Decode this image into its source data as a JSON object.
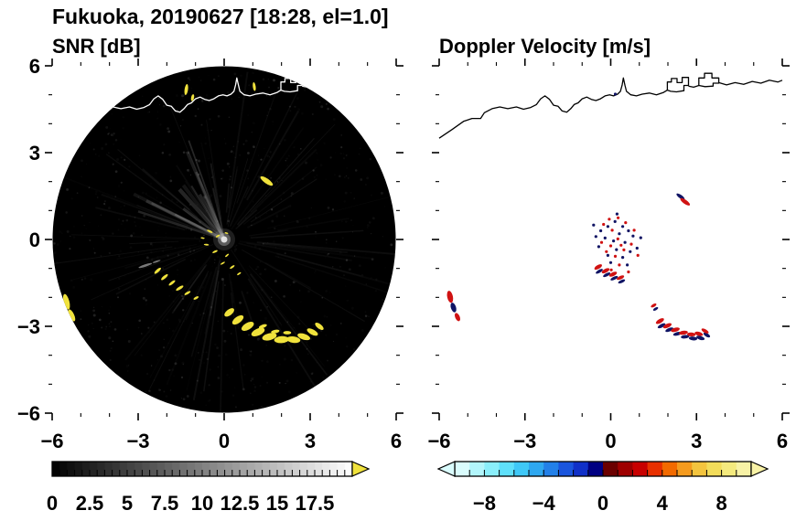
{
  "title": "Fukuoka, 20190627 [18:28, el=1.0]",
  "panels": {
    "snr": {
      "label": "SNR [dB]"
    },
    "doppler": {
      "label": "Doppler Velocity [m/s]"
    }
  },
  "axes": {
    "range": [
      -6,
      6
    ],
    "x_major": [
      -6,
      -3,
      0,
      3,
      6
    ],
    "x_labels": [
      "−6",
      "−3",
      "0",
      "3",
      "6"
    ],
    "y_display": {
      "values": [
        6,
        3,
        0,
        -3,
        -6
      ],
      "labels": [
        "6",
        "3",
        "0",
        "−3",
        "−6"
      ]
    },
    "minor_tick_step": 1
  },
  "colorbars": {
    "snr": {
      "min": 0,
      "max": 20,
      "block_step": 0.5,
      "tick_step": 0.5,
      "label_values": [
        0,
        2.5,
        5,
        7.5,
        10,
        12.5,
        15,
        17.5
      ],
      "labels": [
        "0",
        "2.5",
        "5",
        "7.5",
        "10",
        "12.5",
        "15",
        "17.5"
      ],
      "low_color": "#000000",
      "high_color": "#ffffff",
      "over_arrow_color": "#f0e23c"
    },
    "doppler": {
      "min": -10,
      "max": 10,
      "tick_step": 1,
      "label_values": [
        -8,
        -4,
        0,
        4,
        8
      ],
      "labels": [
        "−8",
        "−4",
        "0",
        "4",
        "8"
      ],
      "under_arrow_color": "#dafcfd",
      "over_arrow_color": "#f8f2a6",
      "block_colors": [
        "#dafcfd",
        "#b2f5fb",
        "#8aeefa",
        "#5fe0fa",
        "#3fc8f7",
        "#2fa8f0",
        "#2380e8",
        "#1a55dd",
        "#1030c8",
        "#000082",
        "#6b0000",
        "#9e0000",
        "#c80000",
        "#e83000",
        "#f26a00",
        "#f59b1e",
        "#f3c43e",
        "#f2dc5a",
        "#f4ea7e",
        "#f8f2a6"
      ]
    }
  },
  "coastline": {
    "main": [
      [
        -6,
        3.5
      ],
      [
        -5.55,
        3.8
      ],
      [
        -5.15,
        4.08
      ],
      [
        -4.85,
        4.18
      ],
      [
        -4.55,
        4.18
      ],
      [
        -4.42,
        4.38
      ],
      [
        -4.15,
        4.52
      ],
      [
        -3.88,
        4.58
      ],
      [
        -3.6,
        4.52
      ],
      [
        -3.3,
        4.58
      ],
      [
        -3.05,
        4.5
      ],
      [
        -2.8,
        4.56
      ],
      [
        -2.6,
        4.66
      ],
      [
        -2.45,
        4.86
      ],
      [
        -2.3,
        4.96
      ],
      [
        -2.14,
        4.84
      ],
      [
        -2.0,
        4.64
      ],
      [
        -1.84,
        4.6
      ],
      [
        -1.7,
        4.44
      ],
      [
        -1.54,
        4.4
      ],
      [
        -1.4,
        4.52
      ],
      [
        -1.28,
        4.66
      ],
      [
        -1.14,
        4.72
      ],
      [
        -1.0,
        4.86
      ],
      [
        -0.84,
        4.92
      ],
      [
        -0.68,
        4.84
      ],
      [
        -0.52,
        4.8
      ],
      [
        -0.36,
        4.86
      ],
      [
        -0.2,
        4.96
      ],
      [
        -0.04,
        5.0
      ],
      [
        0.1,
        4.96
      ],
      [
        0.24,
        5.02
      ],
      [
        0.34,
        5.12
      ],
      [
        0.4,
        5.34
      ],
      [
        0.44,
        5.58
      ],
      [
        0.5,
        5.32
      ],
      [
        0.55,
        5.12
      ],
      [
        0.7,
        5.0
      ],
      [
        0.9,
        4.96
      ],
      [
        1.1,
        5.02
      ],
      [
        1.35,
        5.06
      ],
      [
        1.6,
        5.0
      ],
      [
        1.85,
        5.08
      ],
      [
        1.98,
        5.16
      ]
    ],
    "links": [
      [
        [
          2.72,
          5.3
        ],
        [
          2.9,
          5.26
        ],
        [
          3.08,
          5.32
        ]
      ],
      [
        [
          3.78,
          5.42
        ],
        [
          4.05,
          5.34
        ],
        [
          4.35,
          5.42
        ],
        [
          4.65,
          5.36
        ],
        [
          4.95,
          5.46
        ],
        [
          5.25,
          5.4
        ],
        [
          5.55,
          5.5
        ],
        [
          5.85,
          5.44
        ],
        [
          6.0,
          5.5
        ]
      ]
    ],
    "blocks": [
      [
        [
          1.98,
          5.16
        ],
        [
          1.98,
          5.44
        ],
        [
          2.12,
          5.44
        ],
        [
          2.12,
          5.56
        ],
        [
          2.32,
          5.56
        ],
        [
          2.32,
          5.42
        ],
        [
          2.5,
          5.42
        ],
        [
          2.5,
          5.6
        ],
        [
          2.72,
          5.6
        ],
        [
          2.72,
          5.32
        ],
        [
          2.56,
          5.32
        ],
        [
          2.56,
          5.14
        ],
        [
          2.3,
          5.1
        ],
        [
          2.1,
          5.12
        ]
      ],
      [
        [
          3.08,
          5.32
        ],
        [
          3.08,
          5.58
        ],
        [
          3.28,
          5.58
        ],
        [
          3.28,
          5.74
        ],
        [
          3.54,
          5.74
        ],
        [
          3.54,
          5.58
        ],
        [
          3.78,
          5.58
        ],
        [
          3.78,
          5.4
        ],
        [
          3.58,
          5.4
        ],
        [
          3.58,
          5.3
        ],
        [
          3.3,
          5.28
        ]
      ]
    ]
  },
  "chart_data": [
    {
      "type": "heatmap",
      "name": "snr_ppi",
      "title": "SNR [dB]",
      "geometry": "radar_ppi_scan",
      "xlim": [
        -6,
        6
      ],
      "ylim": [
        -6,
        6
      ],
      "scan_radius": 6,
      "value_range_dB": [
        0,
        20
      ],
      "background": "near-0 dB noise (black) inside 6-unit scan circle",
      "high_snr_echoes": {
        "color": "#f0e23c",
        "approx_value_dB": "> 17.5",
        "far_left_edge": [
          [
            -5.5,
            -2.15,
            0.2,
            0.55,
            -15
          ],
          [
            -5.32,
            -2.62,
            0.18,
            0.45,
            -25
          ]
        ],
        "coastal_dashes": [
          [
            -1.32,
            5.18,
            0.12,
            0.38,
            8
          ],
          [
            -1.1,
            4.9,
            0.1,
            0.24,
            12
          ],
          [
            1.05,
            5.28,
            0.1,
            0.3,
            -8
          ]
        ],
        "upper_bar": [
          [
            1.48,
            2.02,
            0.52,
            0.17,
            35
          ]
        ],
        "center_clutter": [
          [
            -0.5,
            0.28,
            0.22,
            0.07,
            25
          ],
          [
            -0.22,
            0.12,
            0.16,
            0.06,
            -30
          ],
          [
            0.08,
            0.22,
            0.13,
            0.05,
            15
          ],
          [
            -0.62,
            -0.18,
            0.18,
            0.06,
            5
          ],
          [
            -0.32,
            -0.42,
            0.2,
            0.07,
            -25
          ],
          [
            0.1,
            -0.55,
            0.16,
            0.06,
            -40
          ],
          [
            -0.05,
            -0.82,
            0.18,
            0.06,
            -30
          ],
          [
            0.28,
            -0.95,
            0.2,
            0.07,
            -35
          ],
          [
            0.52,
            -1.18,
            0.16,
            0.06,
            -35
          ],
          [
            -0.75,
            0.05,
            0.14,
            0.05,
            10
          ]
        ],
        "arc_thin_segment": [
          [
            -2.32,
            -1.08,
            0.3,
            0.1,
            -42
          ],
          [
            -2.08,
            -1.3,
            0.3,
            0.1,
            -40
          ],
          [
            -1.82,
            -1.5,
            0.28,
            0.09,
            -38
          ],
          [
            -1.55,
            -1.68,
            0.3,
            0.1,
            -32
          ],
          [
            -1.28,
            -1.85,
            0.24,
            0.08,
            -30
          ],
          [
            -0.98,
            -2.02,
            0.2,
            0.08,
            -28
          ]
        ],
        "arc_main_band": [
          [
            0.18,
            -2.52,
            0.4,
            0.2,
            -38
          ],
          [
            0.48,
            -2.78,
            0.46,
            0.22,
            -36
          ],
          [
            0.82,
            -3.0,
            0.48,
            0.24,
            -30
          ],
          [
            1.18,
            -3.2,
            0.5,
            0.24,
            -24
          ],
          [
            1.58,
            -3.36,
            0.52,
            0.24,
            -14
          ],
          [
            2.0,
            -3.46,
            0.52,
            0.24,
            -4
          ],
          [
            2.42,
            -3.46,
            0.48,
            0.22,
            8
          ],
          [
            2.78,
            -3.36,
            0.46,
            0.2,
            18
          ],
          [
            3.08,
            -3.2,
            0.42,
            0.18,
            28
          ],
          [
            3.32,
            -3.0,
            0.36,
            0.16,
            38
          ],
          [
            1.35,
            -3.0,
            0.3,
            0.12,
            -20
          ],
          [
            1.78,
            -3.18,
            0.3,
            0.12,
            -10
          ],
          [
            2.2,
            -3.22,
            0.28,
            0.12,
            0
          ]
        ]
      },
      "clutter_streaks": {
        "color": "#8f8f8f",
        "blobs": [
          [
            -2.75,
            -0.9,
            0.5,
            0.08,
            -18
          ],
          [
            -2.36,
            -0.76,
            0.3,
            0.06,
            -18
          ]
        ]
      }
    },
    {
      "type": "scatter",
      "name": "doppler_velocity_ppi",
      "title": "Doppler Velocity [m/s]",
      "xlim": [
        -6,
        6
      ],
      "ylim": [
        -6,
        6
      ],
      "value_range_mps": [
        -10,
        10
      ],
      "series": [
        {
          "name": "negative_velocity",
          "approx_value_mps": -2,
          "color": "#101464",
          "blobs": {
            "far_left_edge": [
              [
                -5.5,
                -2.35,
                0.18,
                0.35,
                -18
              ]
            ],
            "harbor_dot": [
              [
                0.16,
                5.02,
                0.1,
                0.1,
                0
              ]
            ],
            "upper_pair": [
              [
                2.44,
                1.48,
                0.34,
                0.12,
                35
              ]
            ],
            "mid_arc": [
              [
                -0.4,
                -1.1,
                0.28,
                0.11,
                -30
              ],
              [
                -0.14,
                -1.22,
                0.28,
                0.11,
                -28
              ],
              [
                0.12,
                -1.34,
                0.28,
                0.11,
                -26
              ],
              [
                0.38,
                -1.45,
                0.26,
                0.1,
                -24
              ]
            ],
            "lower_arc": [
              [
                1.78,
                -2.98,
                0.3,
                0.12,
                -28
              ],
              [
                2.05,
                -3.12,
                0.3,
                0.12,
                -22
              ],
              [
                2.33,
                -3.26,
                0.3,
                0.12,
                -14
              ],
              [
                2.6,
                -3.36,
                0.3,
                0.12,
                -6
              ],
              [
                2.88,
                -3.42,
                0.3,
                0.13,
                6
              ],
              [
                3.14,
                -3.4,
                0.3,
                0.13,
                18
              ],
              [
                3.36,
                -3.3,
                0.26,
                0.12,
                32
              ]
            ],
            "isolated": [
              [
                1.57,
                -2.4,
                0.2,
                0.09,
                -30
              ]
            ]
          },
          "dots": [
            [
              -0.1,
              0.45
            ],
            [
              0.15,
              0.62
            ],
            [
              0.42,
              0.45
            ],
            [
              -0.35,
              0.3
            ],
            [
              0.62,
              0.3
            ],
            [
              -0.52,
              0.1
            ],
            [
              0.3,
              0.2
            ],
            [
              0.78,
              0.12
            ],
            [
              -0.2,
              0.05
            ],
            [
              0.1,
              -0.05
            ],
            [
              0.5,
              -0.1
            ],
            [
              -0.42,
              -0.25
            ],
            [
              0.2,
              -0.35
            ],
            [
              0.68,
              -0.42
            ],
            [
              -0.1,
              -0.55
            ],
            [
              0.42,
              -0.62
            ],
            [
              0.0,
              -0.8
            ],
            [
              0.58,
              -0.88
            ],
            [
              0.92,
              -0.3
            ],
            [
              1.05,
              0.06
            ],
            [
              0.22,
              0.88
            ],
            [
              -0.6,
              0.5
            ]
          ]
        },
        {
          "name": "positive_velocity",
          "approx_value_mps": 2,
          "color": "#d01212",
          "blobs": {
            "far_left_edge": [
              [
                -5.62,
                -1.98,
                0.2,
                0.42,
                -12
              ],
              [
                -5.36,
                -2.68,
                0.16,
                0.3,
                -24
              ]
            ],
            "upper_pair": [
              [
                2.6,
                1.3,
                0.4,
                0.14,
                35
              ]
            ],
            "mid_arc": [
              [
                -0.44,
                -0.95,
                0.3,
                0.13,
                -30
              ],
              [
                -0.18,
                -1.08,
                0.3,
                0.13,
                -28
              ],
              [
                0.08,
                -1.2,
                0.3,
                0.13,
                -26
              ],
              [
                0.34,
                -1.32,
                0.28,
                0.12,
                -24
              ]
            ],
            "lower_arc": [
              [
                1.72,
                -2.82,
                0.32,
                0.14,
                -30
              ],
              [
                1.98,
                -2.98,
                0.32,
                0.14,
                -24
              ],
              [
                2.26,
                -3.12,
                0.32,
                0.14,
                -16
              ],
              [
                2.54,
                -3.22,
                0.32,
                0.14,
                -8
              ],
              [
                2.82,
                -3.28,
                0.3,
                0.13,
                4
              ],
              [
                3.08,
                -3.26,
                0.3,
                0.13,
                16
              ],
              [
                3.3,
                -3.16,
                0.28,
                0.12,
                30
              ]
            ],
            "isolated": [
              [
                1.5,
                -2.28,
                0.22,
                0.1,
                -30
              ]
            ]
          },
          "dots": [
            [
              0.05,
              0.32
            ],
            [
              -0.25,
              0.52
            ],
            [
              0.52,
              0.58
            ],
            [
              0.25,
              0.02
            ],
            [
              -0.32,
              -0.1
            ],
            [
              0.0,
              -0.22
            ],
            [
              0.36,
              -0.2
            ],
            [
              0.72,
              -0.16
            ],
            [
              -0.15,
              -0.42
            ],
            [
              0.16,
              -0.58
            ],
            [
              0.46,
              -0.36
            ],
            [
              0.82,
              0.32
            ],
            [
              0.3,
              -0.88
            ],
            [
              0.02,
              -1.05
            ],
            [
              0.62,
              -1.12
            ],
            [
              0.26,
              0.75
            ],
            [
              0.95,
              -0.55
            ],
            [
              -0.05,
              0.7
            ]
          ]
        }
      ]
    }
  ]
}
